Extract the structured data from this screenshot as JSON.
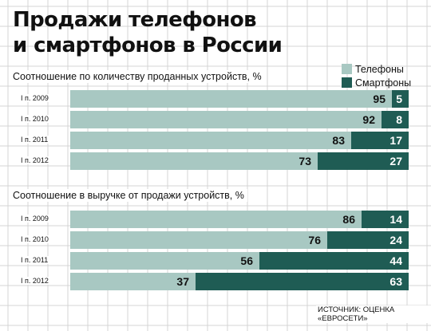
{
  "title": {
    "line1": "Продажи телефонов",
    "line2": "и смартфонов в России"
  },
  "legend": {
    "phones": "Телефоны",
    "smartphones": "Смартфоны"
  },
  "colors": {
    "phones": "#a8c8c2",
    "smartphones": "#1f5c54",
    "grid": "#d4d4d4"
  },
  "source": "ИСТОЧНИК: ОЦЕНКА «ЕВРОСЕТИ»",
  "chart_data": [
    {
      "type": "bar",
      "orientation": "horizontal",
      "stacked": true,
      "title": "Соотношение по количеству проданных устройств, %",
      "categories": [
        "I п. 2009",
        "I п. 2010",
        "I п. 2011",
        "I п. 2012"
      ],
      "series": [
        {
          "name": "Телефоны",
          "values": [
            95,
            92,
            83,
            73
          ]
        },
        {
          "name": "Смартфоны",
          "values": [
            5,
            8,
            17,
            27
          ]
        }
      ],
      "xlim": [
        0,
        100
      ],
      "legend": "top-right"
    },
    {
      "type": "bar",
      "orientation": "horizontal",
      "stacked": true,
      "title": "Соотношение в выручке от продажи устройств, %",
      "categories": [
        "I п. 2009",
        "I п. 2010",
        "I п. 2011",
        "I п. 2012"
      ],
      "series": [
        {
          "name": "Телефоны",
          "values": [
            86,
            76,
            56,
            37
          ]
        },
        {
          "name": "Смартфоны",
          "values": [
            14,
            24,
            44,
            63
          ]
        }
      ],
      "xlim": [
        0,
        100
      ]
    }
  ]
}
